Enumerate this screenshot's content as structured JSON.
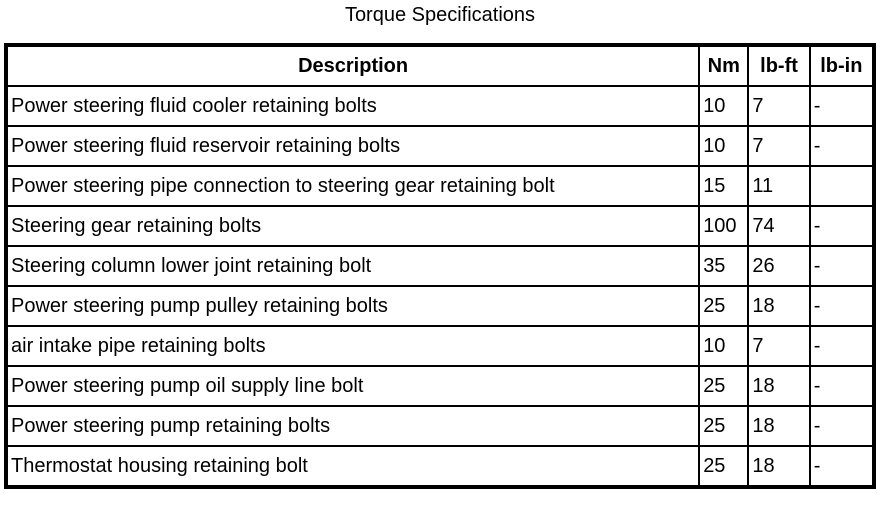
{
  "title": "Torque Specifications",
  "headers": [
    "Description",
    "Nm",
    "lb-ft",
    "lb-in"
  ],
  "rows": [
    [
      "Power steering fluid cooler retaining bolts",
      "10",
      "7",
      "-"
    ],
    [
      "Power steering fluid reservoir retaining bolts",
      "10",
      "7",
      "-"
    ],
    [
      "Power steering pipe connection to steering gear retaining bolt",
      "15",
      "11",
      ""
    ],
    [
      "Steering gear retaining bolts",
      "100",
      "74",
      "-"
    ],
    [
      "Steering column lower joint retaining bolt",
      "35",
      "26",
      "-"
    ],
    [
      "Power steering pump pulley retaining bolts",
      "25",
      "18",
      "-"
    ],
    [
      "air intake pipe retaining bolts",
      "10",
      "7",
      "-"
    ],
    [
      "Power steering pump oil supply line bolt",
      "25",
      "18",
      "-"
    ],
    [
      "Power steering pump retaining bolts",
      "25",
      "18",
      "-"
    ],
    [
      "Thermostat housing retaining bolt",
      "25",
      "18",
      "-"
    ]
  ]
}
